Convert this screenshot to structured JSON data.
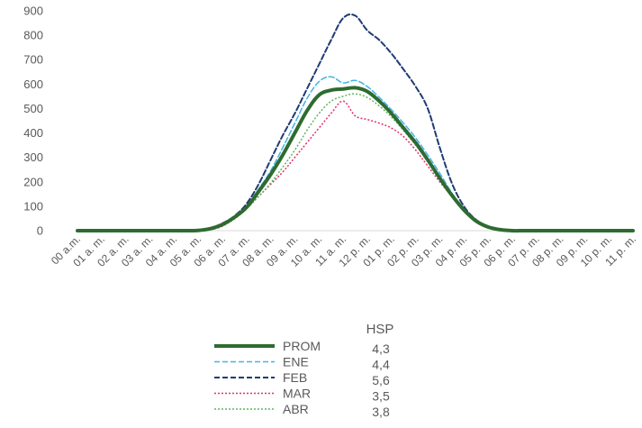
{
  "chart_data": {
    "type": "line",
    "title": "",
    "xlabel": "",
    "ylabel": "",
    "ylim": [
      0,
      900
    ],
    "yticks": [
      0,
      100,
      200,
      300,
      400,
      500,
      600,
      700,
      800,
      900
    ],
    "ytick_labels": [
      "0",
      "100",
      "200",
      "300",
      "400",
      "500",
      "600",
      "700",
      "800",
      "900"
    ],
    "grid": false,
    "categories": [
      "00 a.m.",
      "01 a. m.",
      "02 a. m.",
      "03 a. m.",
      "04 a. m.",
      "05 a. m.",
      "06 a. m.",
      "07 a. m.",
      "08 a. m.",
      "09 a. m.",
      "10 a. m.",
      "11 a. m.",
      "12 p. m.",
      "01 p. m.",
      "02 p. m.",
      "03 p. m.",
      "04 p. m.",
      "05 p. m.",
      "06 p. m.",
      "07 p. m.",
      "08 p. m.",
      "09 p. m.",
      "10 p. m.",
      "11 p. m."
    ],
    "x": [
      0,
      0.5,
      1,
      1.5,
      2,
      2.5,
      3,
      3.5,
      4,
      4.5,
      5,
      5.5,
      6,
      6.5,
      7,
      7.5,
      8,
      8.5,
      9,
      9.5,
      10,
      10.5,
      11,
      11.5,
      12,
      12.5,
      13,
      13.5,
      14,
      14.5,
      15,
      15.5,
      16,
      16.5,
      17,
      17.5,
      18,
      18.5,
      19,
      19.5,
      20,
      20.5,
      21,
      21.5,
      22,
      22.5,
      23
    ],
    "legend_header": "HSP",
    "legend_position": "bottom",
    "series": [
      {
        "name": "PROM",
        "hsp": "4,3",
        "color": "#2E6B30",
        "style": "solid",
        "width": 4,
        "values": [
          0,
          0,
          0,
          0,
          0,
          0,
          0,
          0,
          0,
          0,
          1,
          8,
          25,
          55,
          95,
          160,
          230,
          310,
          400,
          490,
          555,
          575,
          580,
          585,
          570,
          530,
          480,
          420,
          360,
          290,
          215,
          145,
          85,
          40,
          15,
          4,
          0,
          0,
          0,
          0,
          0,
          0,
          0,
          0,
          0,
          0,
          0
        ]
      },
      {
        "name": "ENE",
        "hsp": "4,4",
        "color": "#41B4E8",
        "style": "dashed",
        "width": 1.5,
        "values": [
          0,
          0,
          0,
          0,
          0,
          0,
          0,
          0,
          0,
          0,
          1,
          6,
          22,
          55,
          100,
          170,
          245,
          340,
          440,
          540,
          610,
          630,
          605,
          615,
          590,
          545,
          495,
          440,
          380,
          310,
          235,
          155,
          90,
          42,
          15,
          4,
          0,
          0,
          0,
          0,
          0,
          0,
          0,
          0,
          0,
          0,
          0
        ]
      },
      {
        "name": "FEB",
        "hsp": "5,6",
        "color": "#1F3B73",
        "style": "dashed",
        "width": 2,
        "values": [
          0,
          0,
          0,
          0,
          0,
          0,
          0,
          0,
          0,
          0,
          1,
          10,
          30,
          60,
          110,
          190,
          290,
          390,
          480,
          580,
          680,
          780,
          870,
          880,
          820,
          780,
          725,
          660,
          590,
          500,
          340,
          195,
          100,
          45,
          18,
          5,
          0,
          0,
          0,
          0,
          0,
          0,
          0,
          0,
          0,
          0,
          0
        ]
      },
      {
        "name": "MAR",
        "hsp": "3,5",
        "color": "#E0306A",
        "style": "dotted",
        "width": 1.5,
        "values": [
          0,
          0,
          0,
          0,
          0,
          0,
          0,
          0,
          0,
          0,
          1,
          5,
          18,
          50,
          90,
          140,
          190,
          240,
          300,
          360,
          420,
          480,
          530,
          470,
          455,
          440,
          420,
          385,
          330,
          265,
          200,
          140,
          80,
          38,
          14,
          3,
          0,
          0,
          0,
          0,
          0,
          0,
          0,
          0,
          0,
          0,
          0
        ]
      },
      {
        "name": "ABR",
        "hsp": "3,8",
        "color": "#5EB55E",
        "style": "dotted",
        "width": 1.5,
        "values": [
          0,
          0,
          0,
          0,
          0,
          0,
          0,
          0,
          0,
          0,
          1,
          5,
          20,
          48,
          90,
          140,
          195,
          260,
          330,
          410,
          480,
          530,
          550,
          560,
          545,
          510,
          465,
          410,
          350,
          285,
          210,
          140,
          80,
          38,
          14,
          3,
          0,
          0,
          0,
          0,
          0,
          0,
          0,
          0,
          0,
          0,
          0
        ]
      }
    ]
  }
}
